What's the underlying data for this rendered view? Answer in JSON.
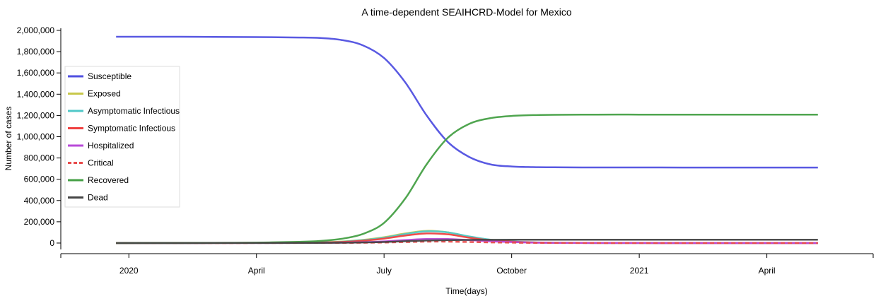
{
  "chart_data": {
    "type": "line",
    "title": "A time-dependent SEAIHCRD-Model for Mexico",
    "xlabel": "Time(days)",
    "ylabel": "Number of cases",
    "ylim": [
      -60000,
      2020000
    ],
    "xlim": [
      -1.6,
      17.5
    ],
    "y_ticks": [
      0,
      200000,
      400000,
      600000,
      800000,
      1000000,
      1200000,
      1400000,
      1600000,
      1800000,
      2000000
    ],
    "y_tick_labels": [
      "0",
      "200,000",
      "400,000",
      "600,000",
      "800,000",
      "1,000,000",
      "1,200,000",
      "1,400,000",
      "1,600,000",
      "1,800,000",
      "2,000,000"
    ],
    "x_ticks": [
      0,
      3,
      6,
      9,
      12,
      15
    ],
    "x_tick_labels": [
      "2020",
      "April",
      "July",
      "October",
      "2021",
      "April"
    ],
    "x": [
      -0.3,
      1,
      2,
      3,
      4,
      4.5,
      5,
      5.5,
      6,
      6.5,
      7,
      7.5,
      8,
      8.5,
      9,
      9.5,
      10,
      11,
      12,
      13,
      14,
      15,
      16.2
    ],
    "series": [
      {
        "name": "Susceptible",
        "color": "#5050e0",
        "dash": false,
        "values": [
          1940000,
          1940000,
          1939000,
          1937000,
          1933000,
          1928000,
          1910000,
          1860000,
          1740000,
          1510000,
          1200000,
          950000,
          810000,
          740000,
          720000,
          714000,
          712000,
          711000,
          711000,
          710000,
          710000,
          710000,
          710000
        ]
      },
      {
        "name": "Exposed",
        "color": "#c8c84a",
        "dash": false,
        "values": [
          0,
          200,
          800,
          2000,
          5000,
          8000,
          14000,
          30000,
          55000,
          90000,
          115000,
          100000,
          60000,
          30000,
          15000,
          6000,
          2500,
          600,
          150,
          50,
          10,
          5,
          0
        ]
      },
      {
        "name": "Asymptomatic Infectious",
        "color": "#50c8c8",
        "dash": false,
        "values": [
          0,
          200,
          700,
          1800,
          4500,
          7000,
          12000,
          27000,
          50000,
          85000,
          110000,
          100000,
          62000,
          32000,
          16000,
          7000,
          3000,
          700,
          150,
          50,
          10,
          5,
          0
        ]
      },
      {
        "name": "Symptomatic Infectious",
        "color": "#f04040",
        "dash": false,
        "values": [
          0,
          150,
          500,
          1300,
          3500,
          5500,
          10000,
          22000,
          42000,
          70000,
          90000,
          82000,
          50000,
          26000,
          13000,
          5500,
          2500,
          600,
          150,
          50,
          10,
          5,
          0
        ]
      },
      {
        "name": "Hospitalized",
        "color": "#b84ad8",
        "dash": false,
        "values": [
          0,
          50,
          200,
          500,
          1200,
          2000,
          3500,
          8000,
          16000,
          28000,
          38000,
          38000,
          28000,
          16000,
          9000,
          4000,
          2000,
          500,
          150,
          50,
          10,
          5,
          0
        ]
      },
      {
        "name": "Critical",
        "color": "#e84a4a",
        "dash": true,
        "values": [
          0,
          20,
          60,
          150,
          400,
          700,
          1200,
          2500,
          5000,
          9000,
          13000,
          13000,
          10000,
          6000,
          3500,
          1500,
          700,
          200,
          50,
          20,
          5,
          2,
          0
        ]
      },
      {
        "name": "Recovered",
        "color": "#46a046",
        "dash": false,
        "values": [
          0,
          500,
          1500,
          4000,
          12000,
          20000,
          40000,
          85000,
          190000,
          420000,
          740000,
          990000,
          1120000,
          1175000,
          1195000,
          1203000,
          1206000,
          1208000,
          1208000,
          1208000,
          1208000,
          1208000,
          1208000
        ]
      },
      {
        "name": "Dead",
        "color": "#454545",
        "dash": false,
        "values": [
          0,
          50,
          150,
          400,
          1000,
          1600,
          2800,
          5500,
          10000,
          17000,
          23500,
          27000,
          29500,
          30500,
          31200,
          31500,
          31700,
          31800,
          31800,
          31800,
          31800,
          31800,
          31800
        ]
      }
    ],
    "legend": "left",
    "grid": false
  }
}
